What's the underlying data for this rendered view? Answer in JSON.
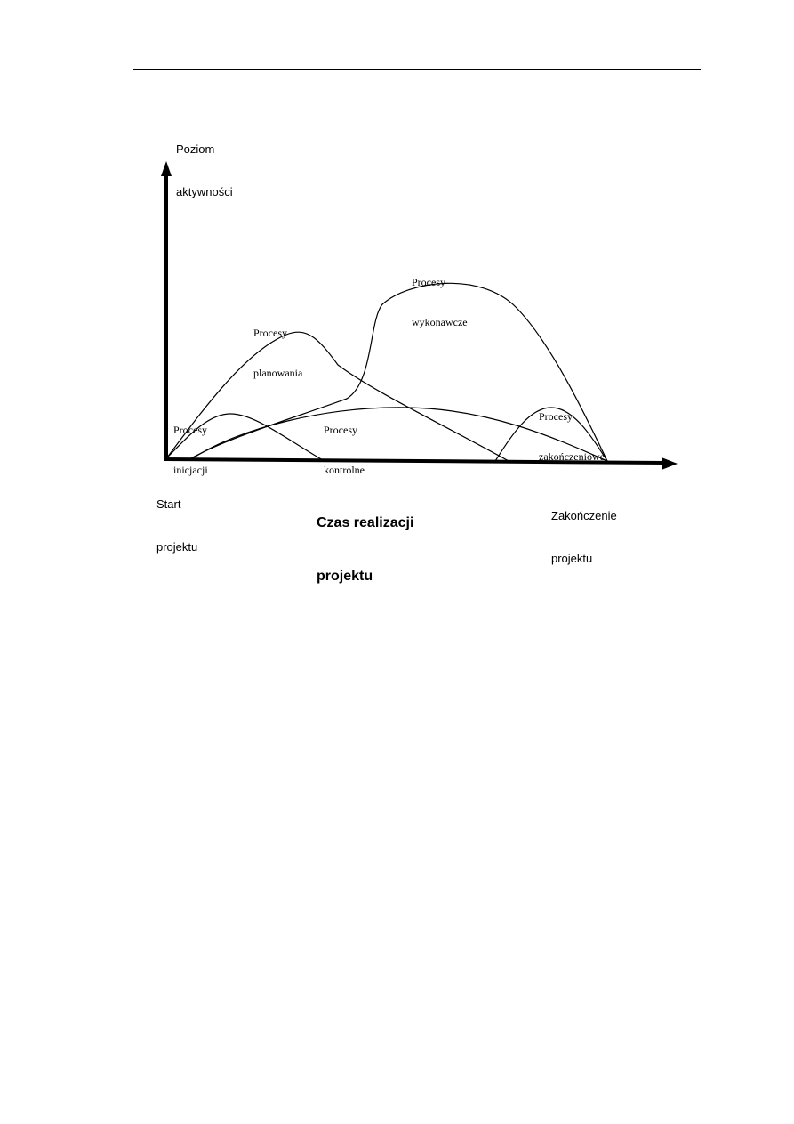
{
  "diagram": {
    "axis_y_label_line1": "Poziom",
    "axis_y_label_line2": "aktywności",
    "start_label_line1": "Start",
    "start_label_line2": "projektu",
    "x_axis_label_line1": "Czas realizacji",
    "x_axis_label_line2": "projektu",
    "end_label_line1": "Zakończenie",
    "end_label_line2": "projektu",
    "curves": {
      "initiation": {
        "line1": "Procesy",
        "line2": "inicjacji"
      },
      "planning": {
        "line1": "Procesy",
        "line2": "planowania"
      },
      "control": {
        "line1": "Procesy",
        "line2": "kontrolne"
      },
      "execution": {
        "line1": "Procesy",
        "line2": "wykonawcze"
      },
      "closing": {
        "line1": "Procesy",
        "line2": "zakończeniowe"
      }
    },
    "line_color": "#000000"
  }
}
